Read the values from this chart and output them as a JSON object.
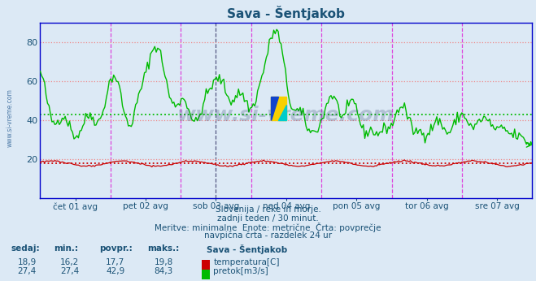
{
  "title": "Sava - Šentjakob",
  "title_color": "#1a5276",
  "bg_color": "#dce9f5",
  "plot_bg_color": "#dce9f5",
  "grid_h_color": "#ffaaaa",
  "grid_v_color": "#dd66dd",
  "grid_v2_color": "#444488",
  "spine_color": "#0000cc",
  "tick_color": "#1a5276",
  "temp_color": "#cc0000",
  "flow_color": "#00bb00",
  "temp_avg": 17.7,
  "flow_avg": 42.9,
  "x_labels": [
    "čet 01 avg",
    "pet 02 avg",
    "sob 03 avg",
    "ned 04 avg",
    "pon 05 avg",
    "tor 06 avg",
    "sre 07 avg"
  ],
  "y_ticks": [
    20,
    40,
    60,
    80
  ],
  "ylim": [
    0,
    90
  ],
  "footer_lines": [
    "Slovenija / reke in morje.",
    "zadnji teden / 30 minut.",
    "Meritve: minimalne  Enote: metrične  Črta: povprečje",
    "navpična črta - razdelek 24 ur"
  ],
  "watermark": "www.si-vreme.com",
  "left_watermark": "www.si-vreme.com",
  "legend_header": "Sava - Šentjakob",
  "legend_row1_label": "temperatura[C]",
  "legend_row2_label": "pretok[m3/s]",
  "table_headers": [
    "sedaj:",
    "min.:",
    "povpr.:",
    "maks.:"
  ],
  "table_row1": [
    "18,9",
    "16,2",
    "17,7",
    "19,8"
  ],
  "table_row2": [
    "27,4",
    "27,4",
    "42,9",
    "84,3"
  ],
  "logo_colors": [
    "#f5d800",
    "#0055cc",
    "#00ccaa"
  ]
}
